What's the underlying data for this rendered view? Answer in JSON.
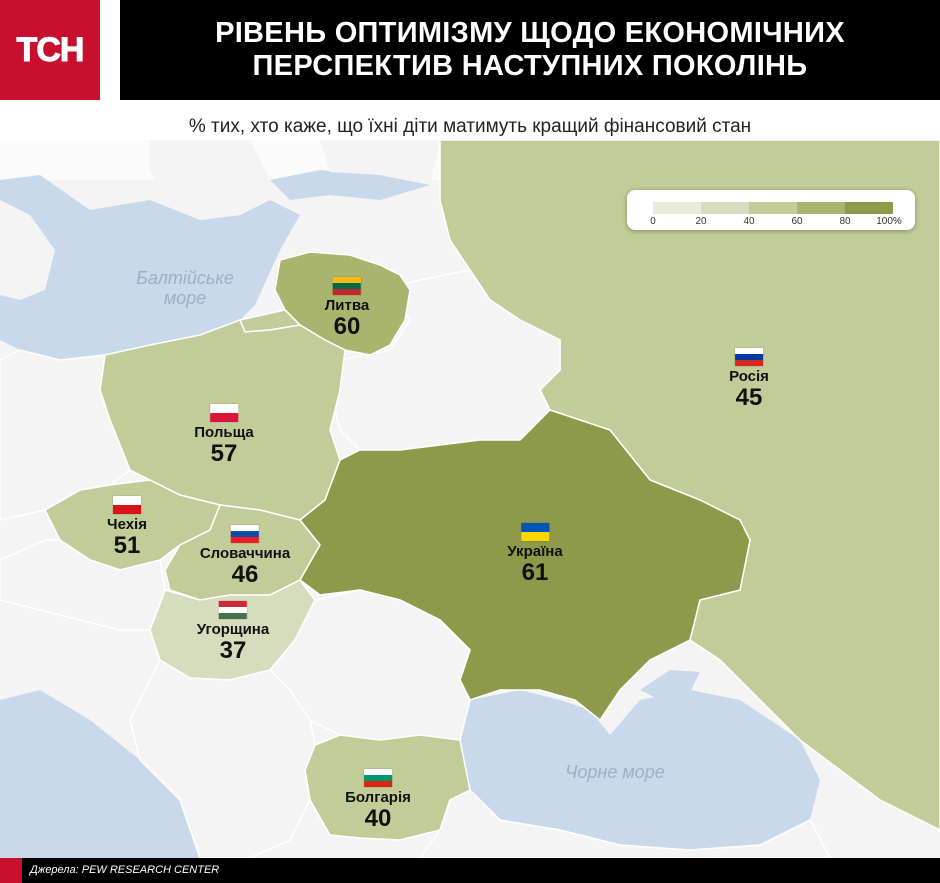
{
  "header": {
    "logo_text": "ТСН",
    "title_line1": "РІВЕНЬ ОПТИМІЗМУ ЩОДО ЕКОНОМІЧНИХ",
    "title_line2": "ПЕРСПЕКТИВ НАСТУПНИХ ПОКОЛІНЬ",
    "subtitle": "% тих, хто каже, що їхні діти матимуть кращий фінансовий стан"
  },
  "legend": {
    "ticks": [
      "0",
      "20",
      "40",
      "60",
      "80",
      "100%"
    ],
    "colors": [
      "#e8ecdc",
      "#d6ddbd",
      "#c2cc98",
      "#a9b56e",
      "#8d9a4a"
    ]
  },
  "seas": {
    "baltic": "Балтійське море",
    "black": "Чорне море"
  },
  "countries": [
    {
      "id": "lithuania",
      "name": "Литва",
      "value": 60,
      "flag": [
        "#fdb913",
        "#006a44",
        "#c1272d"
      ]
    },
    {
      "id": "russia",
      "name": "Росія",
      "value": 45,
      "flag": [
        "#ffffff",
        "#0039a6",
        "#d52b1e"
      ]
    },
    {
      "id": "poland",
      "name": "Польща",
      "value": 57,
      "flag": [
        "#ffffff",
        "#dc143c"
      ]
    },
    {
      "id": "czechia",
      "name": "Чехія",
      "value": 51,
      "flag": [
        "#ffffff",
        "#d7141a"
      ]
    },
    {
      "id": "slovakia",
      "name": "Словаччина",
      "value": 46,
      "flag": [
        "#ffffff",
        "#0b4ea2",
        "#ee1c25"
      ]
    },
    {
      "id": "ukraine",
      "name": "Україна",
      "value": 61,
      "flag": [
        "#0057b7",
        "#ffd700"
      ]
    },
    {
      "id": "hungary",
      "name": "Угорщина",
      "value": 37,
      "flag": [
        "#ce2939",
        "#ffffff",
        "#477050"
      ]
    },
    {
      "id": "bulgaria",
      "name": "Болгарія",
      "value": 40,
      "flag": [
        "#ffffff",
        "#00966e",
        "#d62612"
      ]
    }
  ],
  "footer": {
    "source": "Джерела: PEW RESEARCH CENTER"
  },
  "colors": {
    "brand_red": "#c8102e",
    "water": "#c9d9ec",
    "land_neutral": "#f3f3f3",
    "border": "#ffffff"
  }
}
